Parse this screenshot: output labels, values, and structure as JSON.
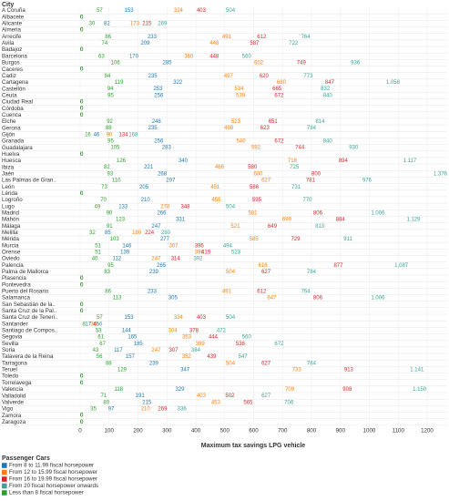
{
  "chart_data": {
    "type": "text-dot",
    "title": "City",
    "x_label": "Maximum tax savings LPG vehicle",
    "legend_title": "Passenger Cars",
    "legend": "bottom-left",
    "grid": true,
    "xlim": [
      0,
      1200
    ],
    "xticks": [
      0,
      100,
      200,
      300,
      400,
      500,
      600,
      700,
      800,
      900,
      1000,
      1100,
      1200
    ],
    "categories": [
      "A Coruña",
      "Albacete",
      "Alicante",
      "Almeria",
      "Arrecife",
      "Avila",
      "Badajoz",
      "Barcelona",
      "Burgos",
      "Caceres",
      "Cadiz",
      "Cartagena",
      "Castellón",
      "Ceuta",
      "Ciudad Real",
      "Córdoba",
      "Cuenca",
      "Elche",
      "Gerona",
      "Gijón",
      "Granada",
      "Guadalajara",
      "Huelva",
      "Huesca",
      "Ibiza",
      "Jaén",
      "Las Palmas de Gran..",
      "León",
      "Lérida",
      "Logroño",
      "Lugo",
      "Madrid",
      "Mahón",
      "Málaga",
      "Melilla",
      "Mérida",
      "Murcia",
      "Orense",
      "Oviedo",
      "Palencia",
      "Palma de Mallorca",
      "Plasencia",
      "Pontevedra",
      "Puerto del Rosario",
      "Salamanca",
      "San Sebastián de la..",
      "Santa Cruz de la Pal..",
      "Santa Cruz de Teneri..",
      "Santander",
      "Santiago de Compos..",
      "Segovia",
      "Sevilla",
      "Soria",
      "Talavera de la Reina",
      "Tarragona",
      "Teruel",
      "Toledo",
      "Torrelavega",
      "Valencia",
      "Valladolid",
      "Valverde",
      "Vigo",
      "Zamora",
      "Zaragoza"
    ],
    "series": [
      {
        "name": "From 8 to 11.99 fiscal horsepower",
        "color": "#1f77b4",
        "values": [
          153,
          0,
          82,
          0,
          233,
          209,
          0,
          170,
          285,
          0,
          235,
          322,
          253,
          256,
          0,
          0,
          0,
          248,
          235,
          46,
          256,
          283,
          0,
          340,
          221,
          268,
          297,
          205,
          0,
          210,
          133,
          266,
          331,
          247,
          85,
          277,
          146,
          139,
          112,
          265,
          239,
          0,
          0,
          233,
          305,
          0,
          0,
          153,
          17,
          144,
          165,
          185,
          117,
          157,
          239,
          347,
          0,
          0,
          329,
          191,
          215,
          97,
          0,
          0
        ]
      },
      {
        "name": "From 12 to 15.99 fiscal horsepower",
        "color": "#ff7f0e",
        "values": [
          324,
          0,
          173,
          0,
          491,
          448,
          0,
          360,
          602,
          0,
          497,
          680,
          534,
          539,
          0,
          0,
          0,
          523,
          498,
          90,
          540,
          592,
          0,
          718,
          466,
          600,
          627,
          451,
          0,
          455,
          278,
          581,
          699,
          521,
          180,
          585,
          307,
          396,
          247,
          616,
          504,
          0,
          0,
          491,
          647,
          0,
          0,
          324,
          36,
          304,
          353,
          399,
          247,
          352,
          504,
          733,
          0,
          0,
          709,
          403,
          453,
          210,
          0,
          0
        ]
      },
      {
        "name": "From 16 to 19.99 fiscal horsepower",
        "color": "#d62728",
        "values": [
          403,
          0,
          215,
          0,
          612,
          587,
          0,
          448,
          749,
          0,
          620,
          847,
          665,
          672,
          0,
          0,
          0,
          651,
          623,
          134,
          672,
          744,
          0,
          894,
          580,
          800,
          781,
          586,
          0,
          595,
          348,
          806,
          884,
          649,
          224,
          729,
          396,
          419,
          314,
          877,
          627,
          0,
          0,
          612,
          806,
          0,
          0,
          403,
          45,
          378,
          444,
          538,
          307,
          439,
          627,
          913,
          0,
          0,
          908,
          502,
          565,
          269,
          0,
          0
        ]
      },
      {
        "name": "From 20 fiscal horsepower onwards",
        "color": "#3aa597",
        "values": [
          504,
          0,
          269,
          0,
          764,
          722,
          0,
          560,
          936,
          0,
          773,
          1058,
          832,
          840,
          0,
          0,
          0,
          814,
          784,
          168,
          840,
          930,
          0,
          1117,
          725,
          1376,
          976,
          731,
          0,
          770,
          504,
          1006,
          1129,
          813,
          280,
          911,
          494,
          523,
          392,
          1087,
          784,
          0,
          0,
          764,
          1006,
          0,
          0,
          504,
          56,
          472,
          560,
          672,
          384,
          547,
          784,
          1141,
          0,
          0,
          1150,
          627,
          706,
          336,
          0,
          0
        ],
        "value_labels": [
          "504",
          "0",
          "269",
          "0",
          "764",
          "722",
          "0",
          "560",
          "936",
          "0",
          "773",
          "1.058",
          "832",
          "840",
          "0",
          "0",
          "0",
          "814",
          "784",
          "168",
          "840",
          "930",
          "0",
          "1.117",
          "725",
          "1.376",
          "976",
          "731",
          "0",
          "770",
          "504",
          "1.006",
          "1.129",
          "813",
          "280",
          "911",
          "494",
          "523",
          "392",
          "1.087",
          "784",
          "0",
          "0",
          "764",
          "1.006",
          "0",
          "0",
          "504",
          "56",
          "472",
          "560",
          "672",
          "384",
          "547",
          "784",
          "1.141",
          "0",
          "0",
          "1.150",
          "627",
          "706",
          "336",
          "0",
          "0"
        ]
      },
      {
        "name": "Less than 8 fiscal horsepower",
        "color": "#2ca02c",
        "values": [
          57,
          0,
          30,
          0,
          86,
          74,
          0,
          63,
          106,
          0,
          84,
          119,
          94,
          95,
          0,
          0,
          0,
          92,
          88,
          16,
          95,
          105,
          0,
          126,
          82,
          93,
          110,
          73,
          0,
          70,
          49,
          90,
          123,
          91,
          32,
          103,
          51,
          51,
          40,
          95,
          83,
          0,
          0,
          86,
          113,
          0,
          0,
          57,
          8,
          53,
          61,
          67,
          43,
          56,
          88,
          129,
          0,
          0,
          118,
          71,
          80,
          35,
          0,
          0
        ]
      }
    ]
  }
}
